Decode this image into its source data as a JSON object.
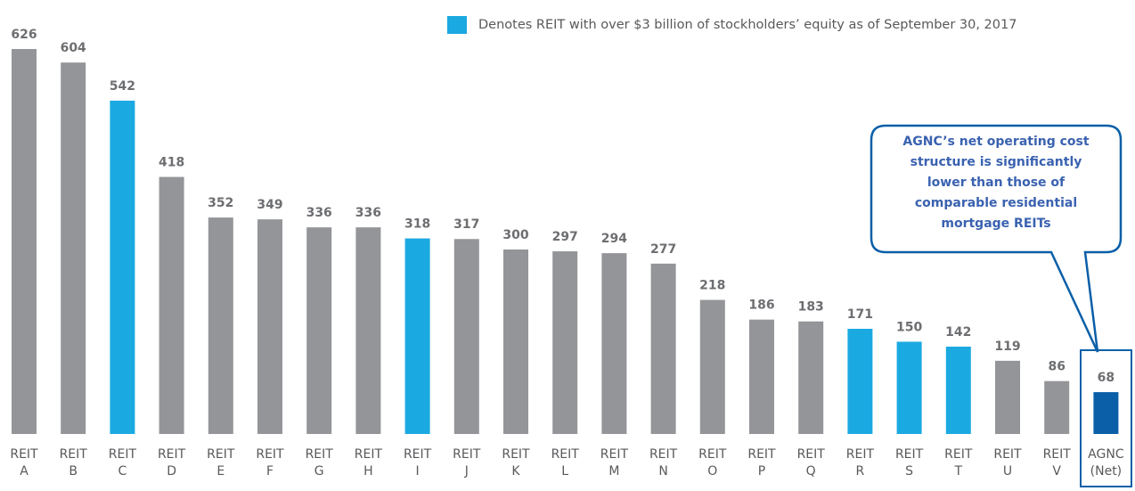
{
  "chart_data": {
    "type": "bar",
    "categories": [
      [
        "REIT",
        "A"
      ],
      [
        "REIT",
        "B"
      ],
      [
        "REIT",
        "C"
      ],
      [
        "REIT",
        "D"
      ],
      [
        "REIT",
        "E"
      ],
      [
        "REIT",
        "F"
      ],
      [
        "REIT",
        "G"
      ],
      [
        "REIT",
        "H"
      ],
      [
        "REIT",
        "I"
      ],
      [
        "REIT",
        "J"
      ],
      [
        "REIT",
        "K"
      ],
      [
        "REIT",
        "L"
      ],
      [
        "REIT",
        "M"
      ],
      [
        "REIT",
        "N"
      ],
      [
        "REIT",
        "O"
      ],
      [
        "REIT",
        "P"
      ],
      [
        "REIT",
        "Q"
      ],
      [
        "REIT",
        "R"
      ],
      [
        "REIT",
        "S"
      ],
      [
        "REIT",
        "T"
      ],
      [
        "REIT",
        "U"
      ],
      [
        "REIT",
        "V"
      ],
      [
        "AGNC",
        "(Net)"
      ]
    ],
    "values": [
      626,
      604,
      542,
      418,
      352,
      349,
      336,
      336,
      318,
      317,
      300,
      297,
      294,
      277,
      218,
      186,
      183,
      171,
      150,
      142,
      119,
      86,
      68
    ],
    "colors": [
      "#939598",
      "#939598",
      "#1ba9e1",
      "#939598",
      "#939598",
      "#939598",
      "#939598",
      "#939598",
      "#1ba9e1",
      "#939598",
      "#939598",
      "#939598",
      "#939598",
      "#939598",
      "#939598",
      "#939598",
      "#939598",
      "#1ba9e1",
      "#1ba9e1",
      "#1ba9e1",
      "#939598",
      "#939598",
      "#0a5fa8"
    ],
    "legend": {
      "label": "Denotes REIT with over $3 billion of stockholders’ equity as of September 30, 2017",
      "color": "#1ba9e1"
    },
    "annotation": [
      "AGNC’s net operating cost",
      "structure is significantly",
      "lower than those of",
      "comparable residential",
      "mortgage REITs"
    ]
  }
}
